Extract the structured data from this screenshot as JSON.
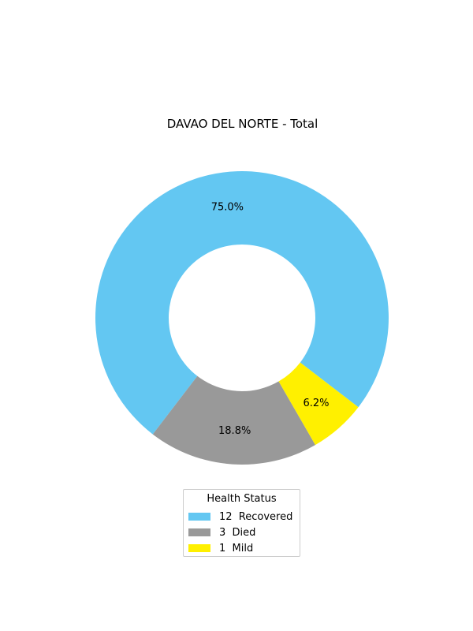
{
  "chart_data": {
    "type": "pie",
    "title": "DAVAO DEL NORTE - Total",
    "legend_title": "Health Status",
    "legend_placement": "bottom-center",
    "donut": true,
    "slices": [
      {
        "label": "Recovered",
        "count": 12,
        "legend": "12  Recovered",
        "percent_label": "75.0%",
        "color": "#63c7f2"
      },
      {
        "label": "Died",
        "count": 3,
        "legend": "3  Died",
        "percent_label": "18.8%",
        "color": "#999999"
      },
      {
        "label": "Mild",
        "count": 1,
        "legend": "1  Mild",
        "percent_label": "6.2%",
        "color": "#fff000"
      }
    ]
  }
}
